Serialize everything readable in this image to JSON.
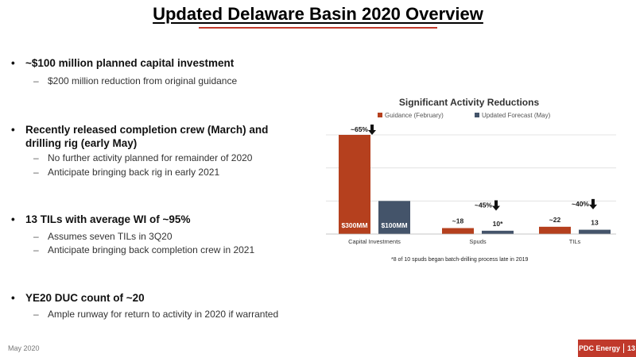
{
  "slide": {
    "title": "Updated Delaware Basin 2020 Overview",
    "footer_date": "May 2020",
    "brand": "PDC Energy",
    "page_number": "13",
    "accent_color": "#c0392b"
  },
  "bullets": [
    {
      "text": "~$100 million planned capital investment",
      "subs": [
        "$200 million reduction from original guidance"
      ]
    },
    {
      "text": "Recently released completion crew (March) and drilling rig (early May)",
      "subs": [
        "No further activity planned for remainder of 2020",
        "Anticipate bringing back rig in early 2021"
      ]
    },
    {
      "text": "13 TILs with average WI of ~95%",
      "subs": [
        "Assumes seven TILs in 3Q20",
        "Anticipate bringing back completion crew in 2021"
      ]
    },
    {
      "text": "YE20 DUC count of ~20",
      "subs": [
        "Ample runway for return to activity in 2020 if warranted"
      ]
    }
  ],
  "chart_data": {
    "type": "bar",
    "title": "Significant Activity Reductions",
    "categories": [
      "Capital Investments",
      "Spuds",
      "TILs"
    ],
    "series": [
      {
        "name": "Guidance (February)",
        "color": "#b5401e",
        "values": [
          300,
          18,
          22
        ],
        "labels": [
          "$300MM",
          "~18",
          "~22"
        ]
      },
      {
        "name": "Updated Forecast (May)",
        "color": "#44546a",
        "values": [
          100,
          10,
          13
        ],
        "labels": [
          "$100MM",
          "10*",
          "13"
        ]
      }
    ],
    "reductions": [
      "~65%",
      "~45%",
      "~40%"
    ],
    "ylim": [
      0,
      300
    ],
    "legend": "top",
    "grid": true,
    "footnote": "*8 of 10 spuds began batch-drilling process late in 2019"
  }
}
